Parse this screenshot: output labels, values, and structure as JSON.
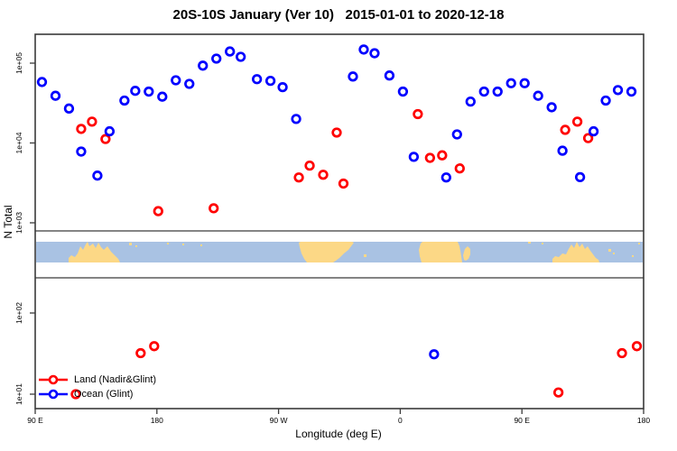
{
  "title": "20S-10S January (Ver 10)   2015-01-01 to 2020-12-18",
  "chart_data": {
    "type": "scatter",
    "title": "20S-10S January (Ver 10)   2015-01-01 to 2020-12-18",
    "xlabel": "Longitude (deg E)",
    "ylabel": "N Total",
    "x_axis": {
      "unit": "degrees east, wrapped axis spanning 450 deg",
      "range": [
        90,
        540
      ],
      "tick_values": [
        90,
        180,
        270,
        360,
        450,
        540
      ],
      "tick_labels": [
        "90 E",
        "180",
        "90 W",
        "0",
        "90 E",
        "180"
      ]
    },
    "y_axis": {
      "scale": "log10",
      "tick_values": [
        10,
        100,
        1000,
        10000,
        100000
      ],
      "tick_labels": [
        "1e+01",
        "1e+02",
        "1e+03",
        "1e+04",
        "1e+05"
      ],
      "upper_panel_log_range": [
        2.79,
        5.36
      ],
      "lower_panel_log_range": [
        0.82,
        2.43
      ],
      "grid": false
    },
    "series": [
      {
        "name": "Land (Nadir&Glint)",
        "color": "#ff0000",
        "marker": "open-circle",
        "points": [
          [
            124,
            15000
          ],
          [
            132,
            18500
          ],
          [
            142,
            11200
          ],
          [
            181,
            1400
          ],
          [
            222,
            1520
          ],
          [
            285,
            3700
          ],
          [
            293,
            5200
          ],
          [
            303,
            4000
          ],
          [
            313,
            13500
          ],
          [
            318,
            3100
          ],
          [
            373,
            23000
          ],
          [
            382,
            6500
          ],
          [
            391,
            7000
          ],
          [
            404,
            4800
          ],
          [
            482,
            14600
          ],
          [
            491,
            18500
          ],
          [
            499,
            11500
          ],
          [
            120,
            10
          ],
          [
            168,
            32
          ],
          [
            178,
            39
          ],
          [
            477,
            10.5
          ],
          [
            524,
            32
          ],
          [
            535,
            39
          ]
        ]
      },
      {
        "name": "Ocean (Glint)",
        "color": "#0000ff",
        "marker": "open-circle",
        "points": [
          [
            95,
            58000
          ],
          [
            105,
            39000
          ],
          [
            115,
            27000
          ],
          [
            124,
            7800
          ],
          [
            136,
            3900
          ],
          [
            145,
            14000
          ],
          [
            156,
            34000
          ],
          [
            164,
            45000
          ],
          [
            174,
            44000
          ],
          [
            184,
            38000
          ],
          [
            194,
            61000
          ],
          [
            204,
            55000
          ],
          [
            214,
            93000
          ],
          [
            224,
            114000
          ],
          [
            234,
            140000
          ],
          [
            242,
            120000
          ],
          [
            254,
            63000
          ],
          [
            264,
            60000
          ],
          [
            273,
            50000
          ],
          [
            283,
            20000
          ],
          [
            325,
            68000
          ],
          [
            333,
            148000
          ],
          [
            341,
            133000
          ],
          [
            352,
            70000
          ],
          [
            362,
            44000
          ],
          [
            370,
            6700
          ],
          [
            394,
            3700
          ],
          [
            402,
            12800
          ],
          [
            412,
            33000
          ],
          [
            422,
            44000
          ],
          [
            432,
            44000
          ],
          [
            442,
            56000
          ],
          [
            452,
            56000
          ],
          [
            462,
            39000
          ],
          [
            472,
            28000
          ],
          [
            480,
            8000
          ],
          [
            493,
            3730
          ],
          [
            503,
            14000
          ],
          [
            512,
            34000
          ],
          [
            521,
            46000
          ],
          [
            531,
            44000
          ],
          [
            385,
            31
          ]
        ]
      }
    ],
    "legend": {
      "position": "bottom-left",
      "items": [
        {
          "label": "Land (Nadir&Glint)",
          "color": "#ff0000"
        },
        {
          "label": "Ocean (Glint)",
          "color": "#0000ff"
        }
      ]
    },
    "map_band": {
      "description": "coastline raster strip for the 20S-10S latitude band",
      "ocean_color": "#a9c2e3",
      "land_color": "#fcd886",
      "land_regions": [
        "Australia / New Guinea",
        "South America",
        "Africa",
        "Madagascar",
        "Australia / New Guinea (wrapped)"
      ]
    }
  }
}
